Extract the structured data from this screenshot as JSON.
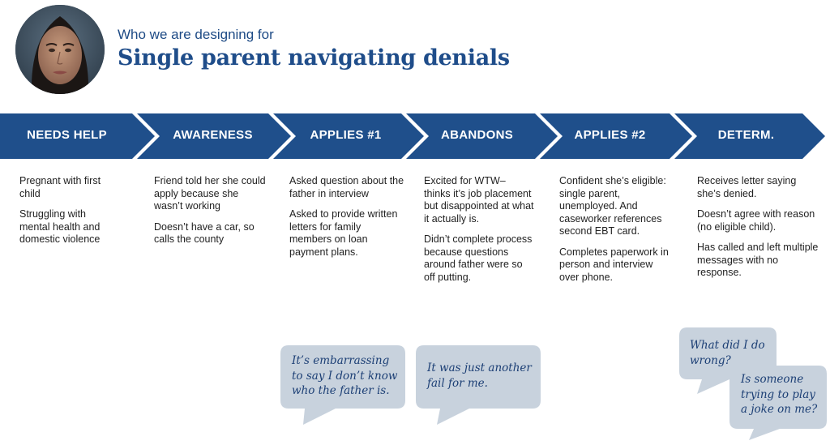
{
  "header": {
    "subtitle": "Who we are designing for",
    "title": "Single parent navigating denials"
  },
  "stages": [
    {
      "label": "NEEDS HELP",
      "notes": [
        "Pregnant with first child",
        "Struggling with mental health and domestic violence"
      ]
    },
    {
      "label": "AWARENESS",
      "notes": [
        "Friend told her she could apply because she wasn’t working",
        "Doesn’t have a car, so calls the county"
      ]
    },
    {
      "label": "APPLIES #1",
      "notes": [
        "Asked question about the father in interview",
        "Asked to provide written letters for family members on loan payment plans."
      ]
    },
    {
      "label": "ABANDONS",
      "notes": [
        "Excited for WTW– thinks it’s job placement but disappointed at what it actually is.",
        "Didn’t complete process because questions around father were so off putting."
      ]
    },
    {
      "label": "APPLIES #2",
      "notes": [
        "Confident she’s eligible: single parent, unemployed. And caseworker references second EBT card.",
        "Completes paperwork in person and interview over phone."
      ]
    },
    {
      "label": "DETERM.",
      "notes": [
        "Receives letter saying she’s denied.",
        "Doesn’t agree with reason (no eligible child).",
        "Has called and left multiple messages with no response."
      ]
    }
  ],
  "quotes": [
    "It’s embarrassing to say I don’t know who the father is.",
    "It was just another fail for me.",
    "What did I do wrong?",
    "Is someone trying to play a joke on me?"
  ],
  "colors": {
    "chevron": "#1f4f8b",
    "bubble": "#c8d2dd",
    "title": "#1f4d8a"
  }
}
